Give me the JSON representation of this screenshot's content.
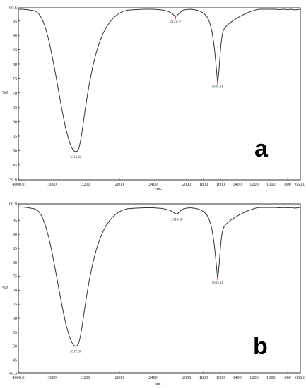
{
  "chart_data": [
    {
      "type": "line",
      "panel_label": "a",
      "xlabel": "cm-1",
      "ylabel": "%T",
      "xlim": [
        4000.0,
        650.0
      ],
      "ylim": [
        39.8,
        99.6
      ],
      "x_ticks": [
        "4000.0",
        "3600",
        "3200",
        "2800",
        "2400",
        "2000",
        "1800",
        "1600",
        "1400",
        "1200",
        "1000",
        "800",
        "650.0"
      ],
      "x_tick_values": [
        4000,
        3600,
        3200,
        2800,
        2400,
        2000,
        1800,
        1600,
        1400,
        1200,
        1000,
        800,
        650
      ],
      "y_ticks": [
        "39.8",
        "45",
        "50",
        "55",
        "60",
        "65",
        "70",
        "75",
        "80",
        "85",
        "90",
        "95",
        "99.6"
      ],
      "y_tick_values": [
        39.8,
        45,
        50,
        55,
        60,
        65,
        70,
        75,
        80,
        85,
        90,
        95,
        99.6
      ],
      "peaks": [
        {
          "label": "3318.22",
          "x": 3318,
          "y": 49.6
        },
        {
          "label": "2131.77",
          "x": 2132,
          "y": 96.6
        },
        {
          "label": "1635.11",
          "x": 1635,
          "y": 74.0
        }
      ],
      "series": [
        {
          "x": [
            4000,
            3960,
            3900,
            3800,
            3760,
            3720,
            3680,
            3640,
            3600,
            3560,
            3520,
            3480,
            3440,
            3400,
            3370,
            3345,
            3330,
            3318,
            3300,
            3280,
            3260,
            3240,
            3220,
            3190,
            3160,
            3120,
            3080,
            3040,
            3000,
            2960,
            2920,
            2880,
            2840,
            2800,
            2760,
            2700,
            2600,
            2500,
            2400,
            2300,
            2250,
            2200,
            2170,
            2150,
            2132,
            2115,
            2095,
            2070,
            2040,
            2000,
            1960,
            1920,
            1880,
            1840,
            1810,
            1780,
            1760,
            1740,
            1720,
            1700,
            1680,
            1665,
            1650,
            1640,
            1635,
            1628,
            1620,
            1610,
            1600,
            1590,
            1580,
            1570,
            1560,
            1540,
            1520,
            1500,
            1480,
            1460,
            1440,
            1420,
            1400,
            1380,
            1360,
            1340,
            1320,
            1300,
            1280,
            1260,
            1240,
            1220,
            1200,
            1180,
            1160,
            1140,
            1120,
            1100,
            1080,
            1050,
            1000,
            950,
            900,
            850,
            800,
            760,
            720,
            680,
            650
          ],
          "y": [
            99.1,
            99.1,
            99.0,
            98.5,
            97.6,
            95.8,
            92.8,
            88.5,
            83.0,
            76.8,
            70.2,
            63.8,
            58.0,
            53.6,
            51.2,
            50.0,
            49.7,
            49.6,
            49.8,
            50.9,
            53.6,
            57.3,
            61.5,
            67.4,
            72.8,
            78.7,
            83.5,
            87.3,
            90.3,
            92.6,
            94.4,
            95.8,
            96.9,
            97.7,
            98.3,
            98.8,
            99.0,
            99.1,
            99.1,
            98.9,
            98.6,
            98.1,
            97.5,
            97.0,
            96.6,
            96.9,
            97.5,
            98.2,
            98.8,
            99.0,
            99.1,
            99.0,
            98.8,
            98.4,
            97.9,
            97.2,
            96.5,
            95.4,
            93.8,
            91.3,
            87.6,
            83.8,
            79.2,
            75.8,
            74.0,
            74.6,
            76.6,
            80.5,
            84.5,
            87.6,
            89.8,
            91.2,
            92.0,
            92.9,
            93.5,
            94.0,
            94.5,
            94.9,
            95.3,
            95.7,
            96.0,
            96.4,
            96.7,
            97.0,
            97.3,
            97.6,
            97.9,
            98.1,
            98.3,
            98.5,
            98.7,
            98.9,
            99.0,
            99.1,
            99.1,
            99.1,
            99.1,
            99.1,
            99.1,
            99.1,
            99.0,
            99.1,
            99.0,
            99.1,
            98.9,
            99.0,
            99.1
          ]
        }
      ]
    },
    {
      "type": "line",
      "panel_label": "b",
      "xlabel": "cm-1",
      "ylabel": "%T",
      "xlim": [
        4000.0,
        650.0
      ],
      "ylim": [
        40.3,
        100.9
      ],
      "x_ticks": [
        "4000.0",
        "3600",
        "3200",
        "2800",
        "2400",
        "2000",
        "1800",
        "1600",
        "1400",
        "1200",
        "1000",
        "800",
        "650.0"
      ],
      "x_tick_values": [
        4000,
        3600,
        3200,
        2800,
        2400,
        2000,
        1800,
        1600,
        1400,
        1200,
        1000,
        800,
        650
      ],
      "y_ticks": [
        "40.3",
        "45",
        "50",
        "55",
        "60",
        "65",
        "70",
        "75",
        "80",
        "85",
        "90",
        "95",
        "100.9"
      ],
      "y_tick_values": [
        40.3,
        45,
        50,
        55,
        60,
        65,
        70,
        75,
        80,
        85,
        90,
        95,
        100.9
      ],
      "peaks": [
        {
          "label": "3317.50",
          "x": 3318,
          "y": 50.0
        },
        {
          "label": "2114.58",
          "x": 2115,
          "y": 97.2
        },
        {
          "label": "1635.11",
          "x": 1635,
          "y": 74.6
        }
      ],
      "series": [
        {
          "x": [
            4000,
            3960,
            3900,
            3800,
            3760,
            3720,
            3680,
            3640,
            3600,
            3560,
            3520,
            3480,
            3440,
            3400,
            3370,
            3345,
            3330,
            3318,
            3300,
            3280,
            3260,
            3240,
            3220,
            3190,
            3160,
            3120,
            3080,
            3040,
            3000,
            2960,
            2920,
            2880,
            2840,
            2800,
            2760,
            2700,
            2600,
            2500,
            2400,
            2300,
            2250,
            2200,
            2170,
            2150,
            2130,
            2115,
            2095,
            2070,
            2040,
            2000,
            1960,
            1920,
            1880,
            1840,
            1810,
            1780,
            1760,
            1740,
            1720,
            1700,
            1680,
            1665,
            1650,
            1640,
            1635,
            1628,
            1620,
            1610,
            1600,
            1590,
            1580,
            1570,
            1560,
            1540,
            1520,
            1500,
            1480,
            1460,
            1440,
            1420,
            1400,
            1380,
            1360,
            1340,
            1320,
            1300,
            1280,
            1260,
            1240,
            1220,
            1200,
            1180,
            1160,
            1140,
            1120,
            1100,
            1080,
            1050,
            1000,
            950,
            900,
            850,
            800,
            760,
            720,
            680,
            650
          ],
          "y": [
            99.8,
            99.8,
            99.6,
            99.1,
            98.2,
            96.4,
            93.3,
            89.0,
            83.5,
            77.2,
            70.6,
            64.2,
            58.4,
            54.0,
            51.6,
            50.4,
            50.1,
            50.0,
            50.2,
            51.3,
            54.0,
            57.7,
            61.9,
            67.8,
            73.2,
            79.1,
            83.9,
            87.7,
            90.7,
            93.0,
            94.8,
            96.2,
            97.3,
            98.1,
            98.7,
            99.2,
            99.4,
            99.5,
            99.5,
            99.3,
            99.0,
            98.6,
            98.1,
            97.7,
            97.4,
            97.2,
            97.8,
            98.5,
            99.1,
            99.4,
            99.5,
            99.4,
            99.2,
            98.8,
            98.3,
            97.6,
            96.9,
            95.8,
            94.2,
            91.7,
            88.0,
            84.2,
            79.6,
            76.3,
            74.6,
            75.2,
            77.2,
            81.0,
            85.0,
            88.1,
            90.3,
            91.7,
            92.5,
            93.4,
            94.0,
            94.5,
            95.0,
            95.4,
            95.8,
            96.2,
            96.5,
            96.9,
            97.2,
            97.5,
            97.8,
            98.1,
            98.4,
            98.6,
            98.8,
            99.0,
            99.2,
            99.4,
            99.5,
            99.6,
            99.6,
            99.6,
            99.6,
            99.6,
            99.6,
            99.6,
            99.5,
            99.6,
            99.5,
            99.6,
            99.4,
            99.5,
            99.6
          ]
        }
      ]
    }
  ]
}
